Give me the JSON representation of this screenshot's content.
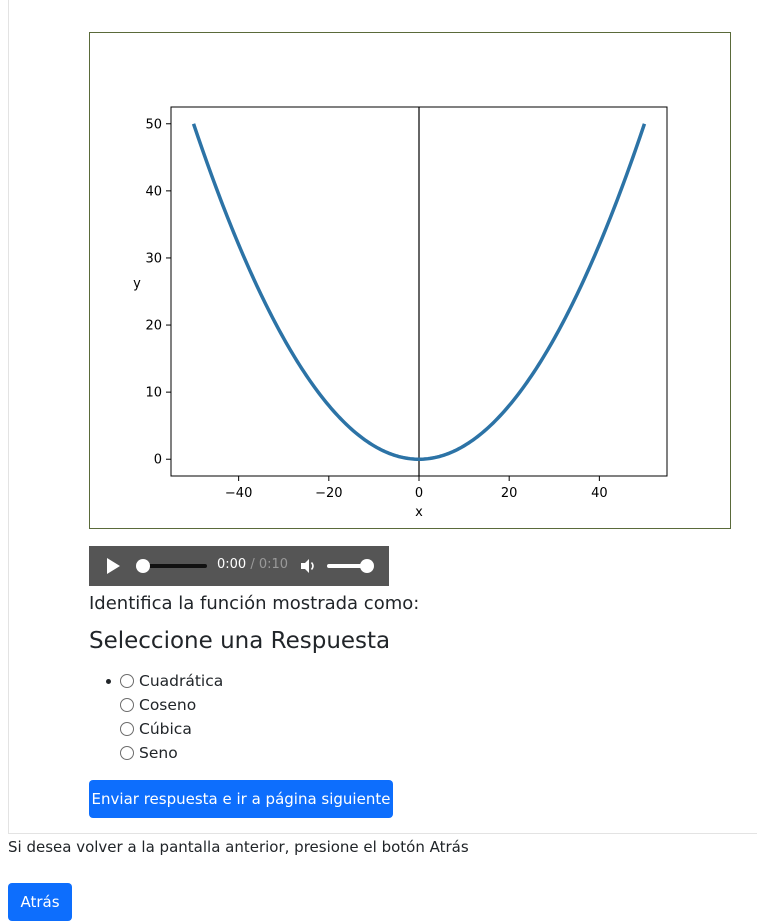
{
  "chart_data": {
    "type": "line",
    "x_range": [
      -50,
      50
    ],
    "function": "y = x^2 / 50",
    "series": [
      {
        "color": "#2c73a6",
        "x": [
          -50,
          -40,
          -30,
          -20,
          -10,
          0,
          10,
          20,
          30,
          40,
          50
        ],
        "y": [
          50,
          32,
          18,
          8,
          2,
          0,
          2,
          8,
          18,
          32,
          50
        ]
      }
    ],
    "xlabel": "x",
    "ylabel": "y",
    "xticks": [
      -40,
      -20,
      0,
      20,
      40
    ],
    "xtick_labels": [
      "−40",
      "−20",
      "0",
      "20",
      "40"
    ],
    "yticks": [
      0,
      10,
      20,
      30,
      40,
      50
    ],
    "ytick_labels": [
      "0",
      "10",
      "20",
      "30",
      "40",
      "50"
    ],
    "xlim": [
      -55,
      55
    ],
    "ylim": [
      -2.5,
      52.5
    ],
    "vertical_line_x": 0,
    "grid": false,
    "legend": "none"
  },
  "audio": {
    "current_time": "0:00",
    "separator": " / ",
    "duration": "0:10",
    "progress": 0,
    "volume": 1.0,
    "play_icon": "play-icon",
    "volume_icon": "volume-icon"
  },
  "question": {
    "prompt": "Identifica la función mostrada como:",
    "select_title": "Seleccione una Respuesta",
    "options": [
      "Cuadrática",
      "Coseno",
      "Cúbica",
      "Seno"
    ]
  },
  "buttons": {
    "submit": "Enviar respuesta e ir a página siguiente",
    "back": "Atrás"
  },
  "hint": "Si desea volver a la pantalla anterior, presione el botón Atrás",
  "colors": {
    "primary": "#0d6efd",
    "audio_bg": "#555555",
    "curve": "#2c73a6"
  }
}
